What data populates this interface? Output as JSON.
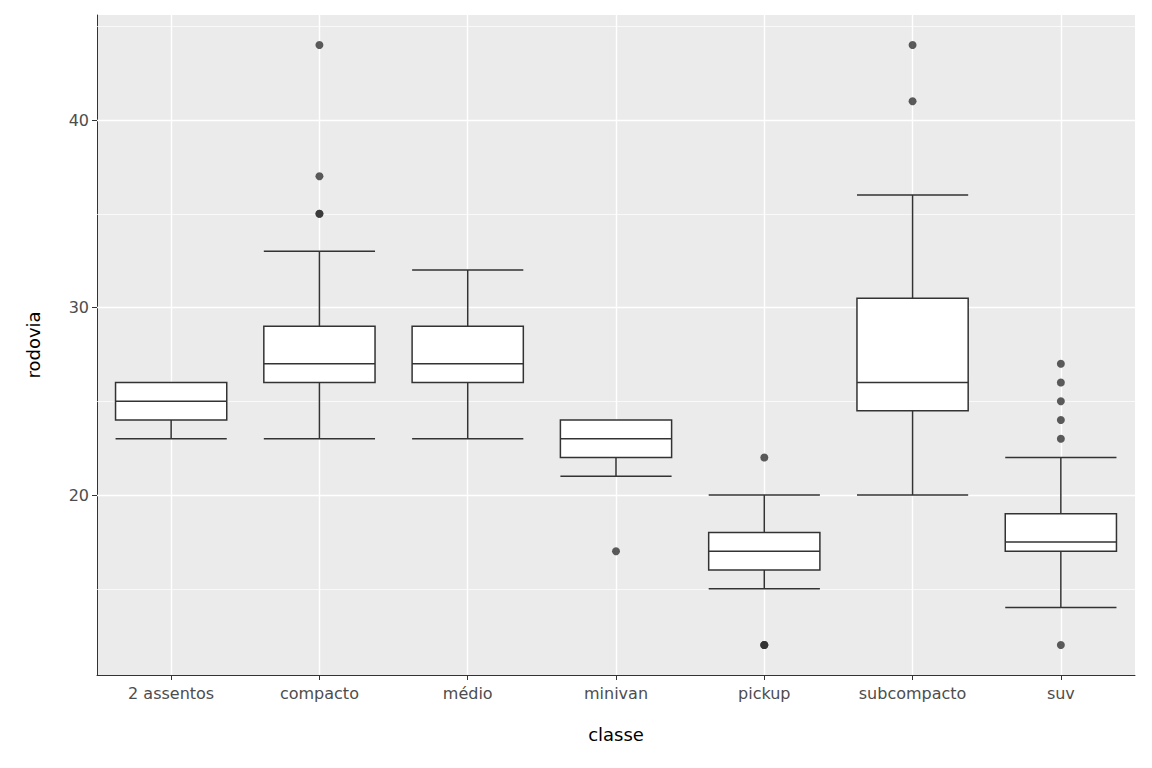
{
  "chart_data": {
    "type": "boxplot",
    "x_label": "classe",
    "y_label": "rodovia",
    "categories": [
      "2 assentos",
      "compacto",
      "médio",
      "minivan",
      "pickup",
      "subcompacto",
      "suv"
    ],
    "values": [
      [
        23,
        24,
        25,
        26,
        26
      ],
      [
        23,
        26,
        27,
        29,
        33
      ],
      [
        23,
        26,
        27,
        29,
        32
      ],
      [
        21,
        22,
        23,
        24,
        24
      ],
      [
        15,
        16,
        17,
        18,
        20
      ],
      [
        20,
        24.5,
        26,
        30.5,
        36
      ],
      [
        14,
        17,
        17.5,
        19,
        22
      ]
    ],
    "outliers": [
      [],
      [
        35,
        35,
        37,
        44
      ],
      [],
      [
        17
      ],
      [
        12,
        12,
        12,
        22
      ],
      [
        41,
        44
      ],
      [
        12,
        23,
        24,
        25,
        26,
        27
      ]
    ],
    "color": "#333333",
    "ylim": [
      10.4,
      45.6
    ],
    "yticks": [
      20,
      30,
      40
    ],
    "grid": true
  }
}
